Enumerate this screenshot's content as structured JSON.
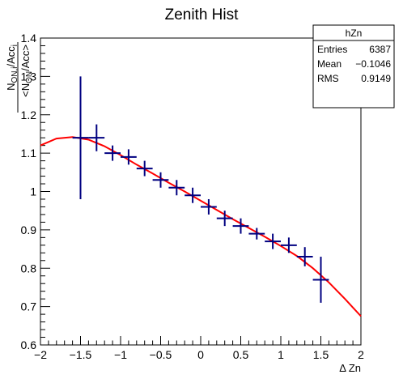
{
  "chart_data": {
    "type": "scatter",
    "title": "Zenith Hist",
    "xlabel": "Δ Zn",
    "ylabel": {
      "numerator": "N_{ON,i}/Acc_{i}",
      "denominator": "<N_{ON}/Acc>"
    },
    "xlim": [
      -2,
      2
    ],
    "ylim": [
      0.6,
      1.4
    ],
    "xticks": [
      -2,
      -1.5,
      -1,
      -0.5,
      0,
      0.5,
      1,
      1.5,
      2
    ],
    "xtick_labels": [
      "−2",
      "−1.5",
      "−1",
      "−0.5",
      "0",
      "0.5",
      "1",
      "1.5",
      "2"
    ],
    "yticks": [
      0.6,
      0.7,
      0.8,
      0.9,
      1.0,
      1.1,
      1.2,
      1.3,
      1.4
    ],
    "ytick_labels": [
      "0.6",
      "0.7",
      "0.8",
      "0.9",
      "1",
      "1.1",
      "1.2",
      "1.3",
      "1.4"
    ],
    "grid": false,
    "series": [
      {
        "kind": "points-with-errors",
        "color": "#000080",
        "x_halfwidth": 0.1,
        "points": [
          {
            "x": -1.5,
            "y": 1.14,
            "yerr": 0.16
          },
          {
            "x": -1.3,
            "y": 1.14,
            "yerr": 0.035
          },
          {
            "x": -1.1,
            "y": 1.1,
            "yerr": 0.02
          },
          {
            "x": -0.9,
            "y": 1.09,
            "yerr": 0.02
          },
          {
            "x": -0.7,
            "y": 1.06,
            "yerr": 0.02
          },
          {
            "x": -0.5,
            "y": 1.03,
            "yerr": 0.02
          },
          {
            "x": -0.3,
            "y": 1.01,
            "yerr": 0.02
          },
          {
            "x": -0.1,
            "y": 0.99,
            "yerr": 0.02
          },
          {
            "x": 0.1,
            "y": 0.96,
            "yerr": 0.02
          },
          {
            "x": 0.3,
            "y": 0.93,
            "yerr": 0.02
          },
          {
            "x": 0.5,
            "y": 0.91,
            "yerr": 0.02
          },
          {
            "x": 0.7,
            "y": 0.89,
            "yerr": 0.015
          },
          {
            "x": 0.9,
            "y": 0.87,
            "yerr": 0.02
          },
          {
            "x": 1.1,
            "y": 0.86,
            "yerr": 0.02
          },
          {
            "x": 1.3,
            "y": 0.83,
            "yerr": 0.025
          },
          {
            "x": 1.5,
            "y": 0.77,
            "yerr": 0.06
          }
        ]
      },
      {
        "kind": "fit-line",
        "color": "#ff0000",
        "x": [
          -2.0,
          -1.8,
          -1.6,
          -1.4,
          -1.2,
          -1.0,
          -0.8,
          -0.6,
          -0.4,
          -0.2,
          0.0,
          0.2,
          0.4,
          0.6,
          0.8,
          1.0,
          1.2,
          1.4,
          1.6,
          1.8,
          2.0
        ],
        "y": [
          1.12,
          1.138,
          1.142,
          1.135,
          1.118,
          1.095,
          1.07,
          1.047,
          1.023,
          1.0,
          0.976,
          0.952,
          0.928,
          0.905,
          0.882,
          0.858,
          0.832,
          0.8,
          0.763,
          0.72,
          0.675
        ]
      }
    ],
    "stats_box": {
      "title": "hZn",
      "rows": [
        {
          "label": "Entries",
          "value": "6387"
        },
        {
          "label": "Mean",
          "value": "−0.1046"
        },
        {
          "label": "RMS",
          "value": "0.9149"
        }
      ]
    }
  }
}
